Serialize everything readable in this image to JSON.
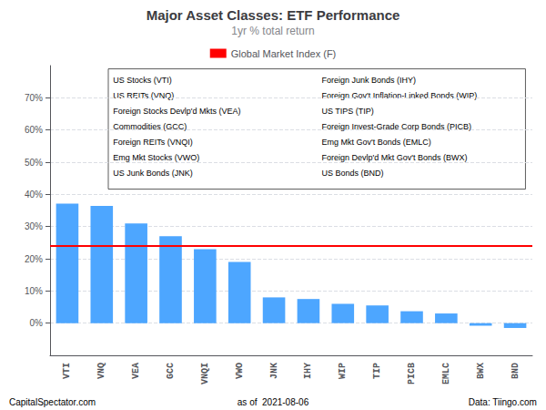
{
  "chart_data": {
    "type": "bar",
    "title": "Major Asset Classes: ETF Performance",
    "subtitle": "1yr % total return",
    "categories": [
      "VTI",
      "VNQ",
      "VEA",
      "GCC",
      "VNQI",
      "VWO",
      "JNK",
      "IHY",
      "WIP",
      "TIP",
      "PICB",
      "EMLC",
      "BWX",
      "BND"
    ],
    "values": [
      37.1,
      36.4,
      31.0,
      27.0,
      23.0,
      19.0,
      8.0,
      7.5,
      6.0,
      5.5,
      3.7,
      3.0,
      -0.8,
      -1.5
    ],
    "color": "#4da6ff",
    "reference_lines": [
      {
        "value": 24.0,
        "label": "Global Market Index (F)",
        "color": "#ff0000"
      }
    ],
    "ylim": [
      -10,
      80
    ],
    "yticks": [
      {
        "value": 0,
        "label": "0%"
      },
      {
        "value": 10,
        "label": "10%"
      },
      {
        "value": 20,
        "label": "20%"
      },
      {
        "value": 30,
        "label": "30%"
      },
      {
        "value": 40,
        "label": "40%"
      },
      {
        "value": 50,
        "label": "50%"
      },
      {
        "value": 60,
        "label": "60%"
      },
      {
        "value": 70,
        "label": "70%"
      }
    ],
    "grid": true,
    "annotations": {
      "box_left": [
        "US Stocks (VTI)",
        "US REITs (VNQ)",
        "Foreign Stocks Devlp'd Mkts (VEA)",
        "Commodities (GCC)",
        "Foreign REITs (VNQI)",
        "Emg Mkt Stocks (VWO)",
        "US Junk Bonds (JNK)"
      ],
      "box_right": [
        "Foreign Junk Bonds (IHY)",
        "Foreign Gov't Inflation-Linked Bonds (WIP)",
        "US TIPS (TIP)",
        "Foreign Invest-Grade Corp Bonds (PICB)",
        "Emg Mkt Gov't Bonds (EMLC)",
        "Foreign Devlp'd Mkt Gov't Bonds (BWX)",
        "US Bonds (BND)"
      ],
      "footer": [
        "CapitalSpectator.com",
        "as of  2021-08-06",
        "Data: Tiingo.com"
      ]
    }
  }
}
